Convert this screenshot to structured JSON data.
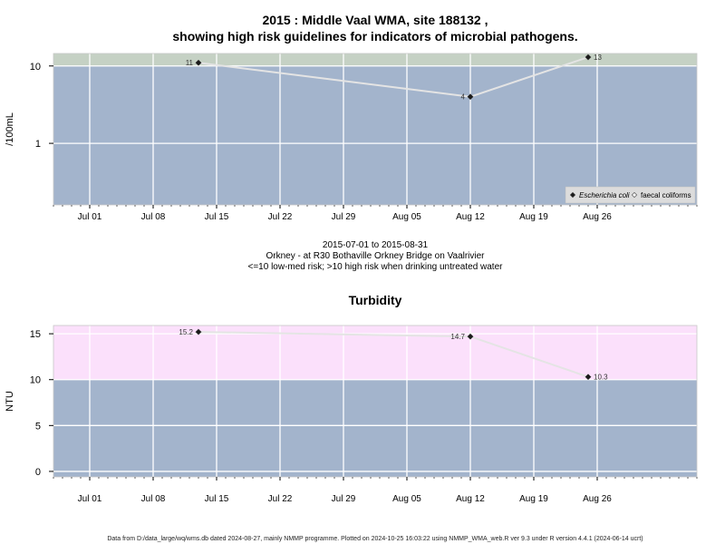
{
  "header": {
    "title_line1": "2015 : Middle Vaal WMA, site 188132 ,",
    "title_line2": "showing high risk guidelines for indicators of microbial pathogens."
  },
  "info": {
    "date_range": "2015-07-01 to 2015-08-31",
    "location": "Orkney - at R30 Bothaville Orkney Bridge on Vaalrivier",
    "guideline": "<=10 low-med risk; >10 high risk when drinking untreated water"
  },
  "footer": {
    "text": "Data from D:/data_large/wq/wms.db dated 2024-08-27, mainly NMMP programme. Plotted on 2024-10-25 16:03:22 using NMMP_WMA_web.R ver 9.3 under R version 4.4.1 (2024-06-14 ucrt)"
  },
  "colors": {
    "panel_bg": "#a3b4cc",
    "high_band_micro": "#c5d1c4",
    "high_band_turb": "#fbe0fb",
    "series_line": "#e4e4e4",
    "point": "#1a1a1a",
    "grid": "#ffffff"
  },
  "chart_data": [
    {
      "type": "line",
      "title": "",
      "xlabel": "",
      "ylabel": "/100mL",
      "y_scale": "log",
      "ylim": [
        0.16,
        14.5
      ],
      "y_ticks": [
        1,
        10
      ],
      "y_tick_labels": [
        "1",
        "10"
      ],
      "xlim": [
        "2015-06-27",
        "2015-09-06"
      ],
      "x_ticks": [
        "2015-07-01",
        "2015-07-08",
        "2015-07-15",
        "2015-07-22",
        "2015-07-29",
        "2015-08-05",
        "2015-08-12",
        "2015-08-19",
        "2015-08-26"
      ],
      "x_tick_labels": [
        "Jul 01",
        "Jul 08",
        "Jul 15",
        "Jul 22",
        "Jul 29",
        "Aug 05",
        "Aug 12",
        "Aug 19",
        "Aug 26"
      ],
      "guideline": 10,
      "grid": true,
      "legend_position": "bottom-right",
      "legend": [
        {
          "name": "Escherichia coli",
          "marker": "filled-diamond"
        },
        {
          "name": "faecal coliforms",
          "marker": "open-diamond"
        }
      ],
      "series": [
        {
          "name": "Escherichia coli",
          "points": [
            {
              "x": "2015-07-13",
              "y": 11,
              "label": "11"
            },
            {
              "x": "2015-08-12",
              "y": 4,
              "label": "4"
            },
            {
              "x": "2015-08-25",
              "y": 13,
              "label": "13"
            }
          ]
        }
      ]
    },
    {
      "type": "line",
      "title": "Turbidity",
      "xlabel": "",
      "ylabel": "NTU",
      "y_scale": "linear",
      "ylim": [
        -0.6,
        15.9
      ],
      "y_ticks": [
        0,
        5,
        10,
        15
      ],
      "y_tick_labels": [
        "0",
        "5",
        "10",
        "15"
      ],
      "xlim": [
        "2015-06-27",
        "2015-09-06"
      ],
      "x_ticks": [
        "2015-07-01",
        "2015-07-08",
        "2015-07-15",
        "2015-07-22",
        "2015-07-29",
        "2015-08-05",
        "2015-08-12",
        "2015-08-19",
        "2015-08-26"
      ],
      "x_tick_labels": [
        "Jul 01",
        "Jul 08",
        "Jul 15",
        "Jul 22",
        "Jul 29",
        "Aug 05",
        "Aug 12",
        "Aug 19",
        "Aug 26"
      ],
      "guideline": 10,
      "grid": true,
      "series": [
        {
          "name": "",
          "points": [
            {
              "x": "2015-07-13",
              "y": 15.2,
              "label": "15.2"
            },
            {
              "x": "2015-08-12",
              "y": 14.7,
              "label": "14.7"
            },
            {
              "x": "2015-08-25",
              "y": 10.3,
              "label": "10.3"
            }
          ]
        }
      ]
    }
  ]
}
